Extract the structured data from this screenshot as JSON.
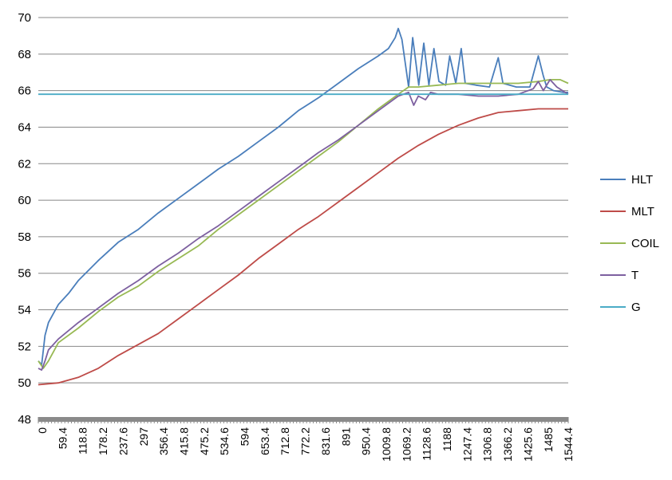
{
  "chart_data": {
    "type": "line",
    "title": "",
    "xlabel": "",
    "ylabel": "",
    "ylim": [
      48,
      70
    ],
    "yticks": [
      48,
      50,
      52,
      54,
      56,
      58,
      60,
      62,
      64,
      66,
      68,
      70
    ],
    "xlim": [
      0,
      1574
    ],
    "xtick_labels": [
      "0",
      "59.4",
      "118.8",
      "178.2",
      "237.6",
      "297",
      "356.4",
      "415.8",
      "475.2",
      "534.6",
      "594",
      "653.4",
      "712.8",
      "772.2",
      "831.6",
      "891",
      "950.4",
      "1009.8",
      "1069.2",
      "1128.6",
      "1188",
      "1247.4",
      "1306.8",
      "1366.2",
      "1425.6",
      "1485",
      "1544.4"
    ],
    "grid": "horizontal",
    "legend_position": "right",
    "series": [
      {
        "name": "HLT",
        "color": "#4a7ebb",
        "points": [
          [
            0,
            51.2
          ],
          [
            10,
            51.0
          ],
          [
            20,
            52.6
          ],
          [
            30,
            53.3
          ],
          [
            45,
            53.8
          ],
          [
            60,
            54.3
          ],
          [
            90,
            54.9
          ],
          [
            118.8,
            55.6
          ],
          [
            178.2,
            56.7
          ],
          [
            237.6,
            57.7
          ],
          [
            297,
            58.4
          ],
          [
            356.4,
            59.3
          ],
          [
            415.8,
            60.1
          ],
          [
            475.2,
            60.9
          ],
          [
            534.6,
            61.7
          ],
          [
            594,
            62.4
          ],
          [
            653.4,
            63.2
          ],
          [
            712.8,
            64.0
          ],
          [
            772.2,
            64.9
          ],
          [
            831.6,
            65.6
          ],
          [
            891,
            66.4
          ],
          [
            950.4,
            67.2
          ],
          [
            1009.8,
            67.9
          ],
          [
            1040,
            68.3
          ],
          [
            1060,
            68.9
          ],
          [
            1069.2,
            69.4
          ],
          [
            1080,
            68.8
          ],
          [
            1100,
            66.2
          ],
          [
            1112,
            68.9
          ],
          [
            1130,
            66.3
          ],
          [
            1145,
            68.6
          ],
          [
            1160,
            66.3
          ],
          [
            1175,
            68.3
          ],
          [
            1190,
            66.5
          ],
          [
            1210,
            66.3
          ],
          [
            1222,
            67.9
          ],
          [
            1240,
            66.4
          ],
          [
            1256,
            68.3
          ],
          [
            1268,
            66.4
          ],
          [
            1300,
            66.3
          ],
          [
            1340,
            66.2
          ],
          [
            1366.2,
            67.8
          ],
          [
            1380,
            66.4
          ],
          [
            1420,
            66.2
          ],
          [
            1460,
            66.2
          ],
          [
            1485,
            67.9
          ],
          [
            1500,
            66.8
          ],
          [
            1510,
            66.2
          ],
          [
            1530,
            66.0
          ],
          [
            1560,
            65.9
          ],
          [
            1574,
            65.9
          ]
        ]
      },
      {
        "name": "MLT",
        "color": "#be4b48",
        "points": [
          [
            0,
            49.9
          ],
          [
            59.4,
            50.0
          ],
          [
            118.8,
            50.3
          ],
          [
            178.2,
            50.8
          ],
          [
            237.6,
            51.5
          ],
          [
            297,
            52.1
          ],
          [
            356.4,
            52.7
          ],
          [
            415.8,
            53.5
          ],
          [
            475.2,
            54.3
          ],
          [
            534.6,
            55.1
          ],
          [
            594,
            55.9
          ],
          [
            653.4,
            56.8
          ],
          [
            712.8,
            57.6
          ],
          [
            772.2,
            58.4
          ],
          [
            831.6,
            59.1
          ],
          [
            891,
            59.9
          ],
          [
            950.4,
            60.7
          ],
          [
            1009.8,
            61.5
          ],
          [
            1069.2,
            62.3
          ],
          [
            1128.6,
            63.0
          ],
          [
            1188,
            63.6
          ],
          [
            1247.4,
            64.1
          ],
          [
            1306.8,
            64.5
          ],
          [
            1366.2,
            64.8
          ],
          [
            1425.6,
            64.9
          ],
          [
            1485,
            65.0
          ],
          [
            1574,
            65.0
          ]
        ]
      },
      {
        "name": "COIL",
        "color": "#98b954",
        "points": [
          [
            0,
            51.2
          ],
          [
            15,
            50.8
          ],
          [
            30,
            51.2
          ],
          [
            45,
            51.7
          ],
          [
            59.4,
            52.2
          ],
          [
            118.8,
            53.0
          ],
          [
            178.2,
            53.9
          ],
          [
            237.6,
            54.7
          ],
          [
            297,
            55.3
          ],
          [
            356.4,
            56.1
          ],
          [
            415.8,
            56.8
          ],
          [
            475.2,
            57.5
          ],
          [
            534.6,
            58.4
          ],
          [
            594,
            59.2
          ],
          [
            653.4,
            60.0
          ],
          [
            712.8,
            60.8
          ],
          [
            772.2,
            61.6
          ],
          [
            831.6,
            62.4
          ],
          [
            891,
            63.2
          ],
          [
            950.4,
            64.1
          ],
          [
            1009.8,
            65.0
          ],
          [
            1069.2,
            65.8
          ],
          [
            1100,
            66.2
          ],
          [
            1128.6,
            66.2
          ],
          [
            1188,
            66.3
          ],
          [
            1247.4,
            66.4
          ],
          [
            1306.8,
            66.4
          ],
          [
            1366.2,
            66.4
          ],
          [
            1425.6,
            66.4
          ],
          [
            1485,
            66.5
          ],
          [
            1520,
            66.6
          ],
          [
            1550,
            66.6
          ],
          [
            1574,
            66.4
          ]
        ]
      },
      {
        "name": "T",
        "color": "#7d60a0",
        "points": [
          [
            0,
            50.8
          ],
          [
            10,
            50.7
          ],
          [
            20,
            51.2
          ],
          [
            30,
            51.8
          ],
          [
            59.4,
            52.4
          ],
          [
            118.8,
            53.3
          ],
          [
            178.2,
            54.1
          ],
          [
            237.6,
            54.9
          ],
          [
            297,
            55.6
          ],
          [
            356.4,
            56.4
          ],
          [
            415.8,
            57.1
          ],
          [
            475.2,
            57.9
          ],
          [
            534.6,
            58.6
          ],
          [
            594,
            59.4
          ],
          [
            653.4,
            60.2
          ],
          [
            712.8,
            61.0
          ],
          [
            772.2,
            61.8
          ],
          [
            831.6,
            62.6
          ],
          [
            891,
            63.3
          ],
          [
            950.4,
            64.1
          ],
          [
            1009.8,
            64.9
          ],
          [
            1069.2,
            65.7
          ],
          [
            1100,
            65.9
          ],
          [
            1115,
            65.2
          ],
          [
            1128.6,
            65.7
          ],
          [
            1150,
            65.5
          ],
          [
            1165,
            65.9
          ],
          [
            1188,
            65.8
          ],
          [
            1220,
            65.8
          ],
          [
            1247.4,
            65.8
          ],
          [
            1306.8,
            65.7
          ],
          [
            1366.2,
            65.7
          ],
          [
            1425.6,
            65.8
          ],
          [
            1470,
            66.1
          ],
          [
            1485,
            66.5
          ],
          [
            1500,
            66.0
          ],
          [
            1520,
            66.6
          ],
          [
            1540,
            66.2
          ],
          [
            1574,
            65.8
          ]
        ]
      },
      {
        "name": "G",
        "color": "#4bacc6",
        "points": [
          [
            0,
            65.8
          ],
          [
            1574,
            65.8
          ]
        ]
      }
    ]
  }
}
